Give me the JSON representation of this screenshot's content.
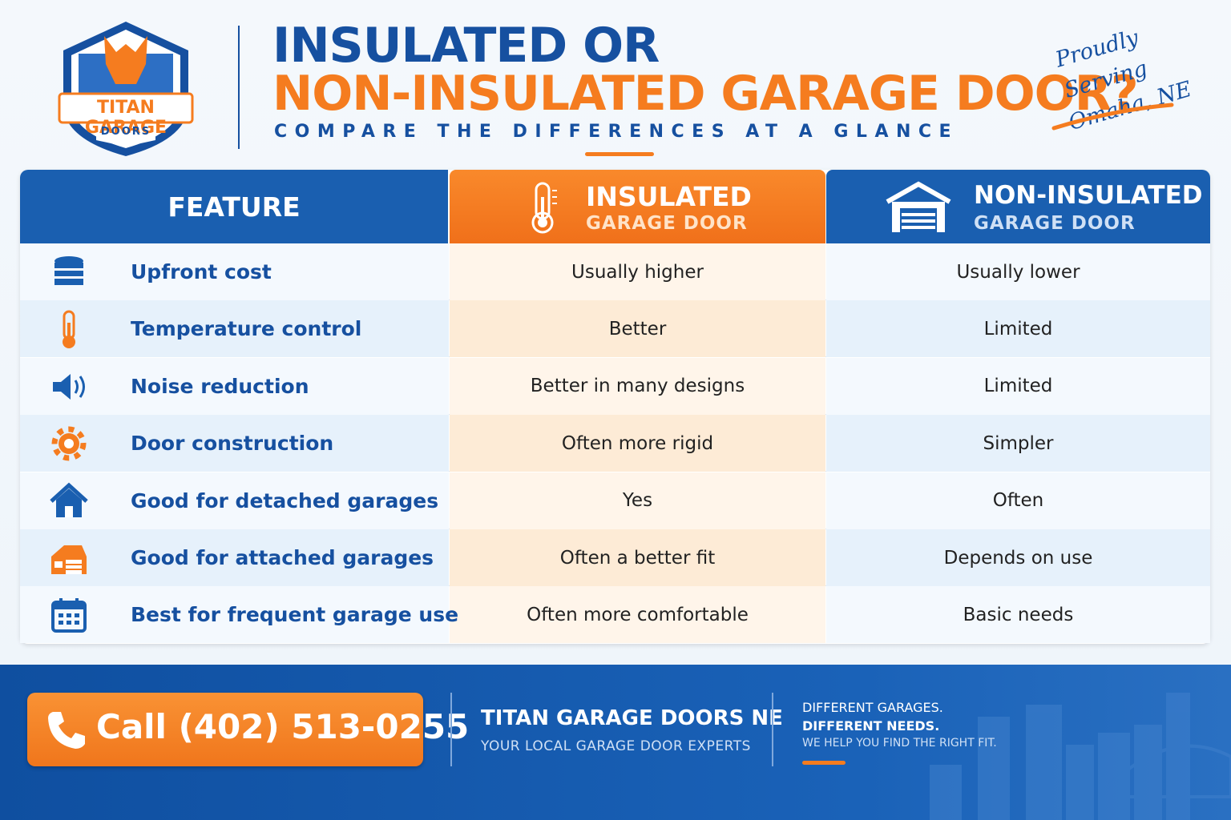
{
  "logo": {
    "name": "TITAN GARAGE",
    "sub": "DOORS"
  },
  "header": {
    "title_line1": "INSULATED OR",
    "title_line2": "NON-INSULATED GARAGE DOOR?",
    "subtitle": "COMPARE THE DIFFERENCES AT A GLANCE",
    "tagline_line1": "Proudly Serving",
    "tagline_line2": "Omaha, NE"
  },
  "table": {
    "columns": [
      {
        "title": "FEATURE"
      },
      {
        "title": "INSULATED",
        "subtitle": "GARAGE DOOR"
      },
      {
        "title": "NON-INSULATED",
        "subtitle": "GARAGE DOOR"
      }
    ],
    "rows": [
      [
        "Upfront cost",
        "Usually higher",
        "Usually lower"
      ],
      [
        "Temperature control",
        "Better",
        "Limited"
      ],
      [
        "Noise reduction",
        "Better in many designs",
        "Limited"
      ],
      [
        "Door construction",
        "Often more rigid",
        "Simpler"
      ],
      [
        "Good for detached garages",
        "Yes",
        "Often"
      ],
      [
        "Good for attached garages",
        "Often a better fit",
        "Depends on use"
      ],
      [
        "Best for frequent garage use",
        "Often more comfortable",
        "Basic needs"
      ]
    ]
  },
  "footer": {
    "phone": "Call (402) 513-0255",
    "company": "TITAN GARAGE DOORS NE",
    "company_sub": "YOUR LOCAL GARAGE DOOR EXPERTS",
    "message": [
      "DIFFERENT GARAGES.",
      "DIFFERENT NEEDS.",
      "WE HELP YOU FIND THE RIGHT FIT."
    ]
  }
}
